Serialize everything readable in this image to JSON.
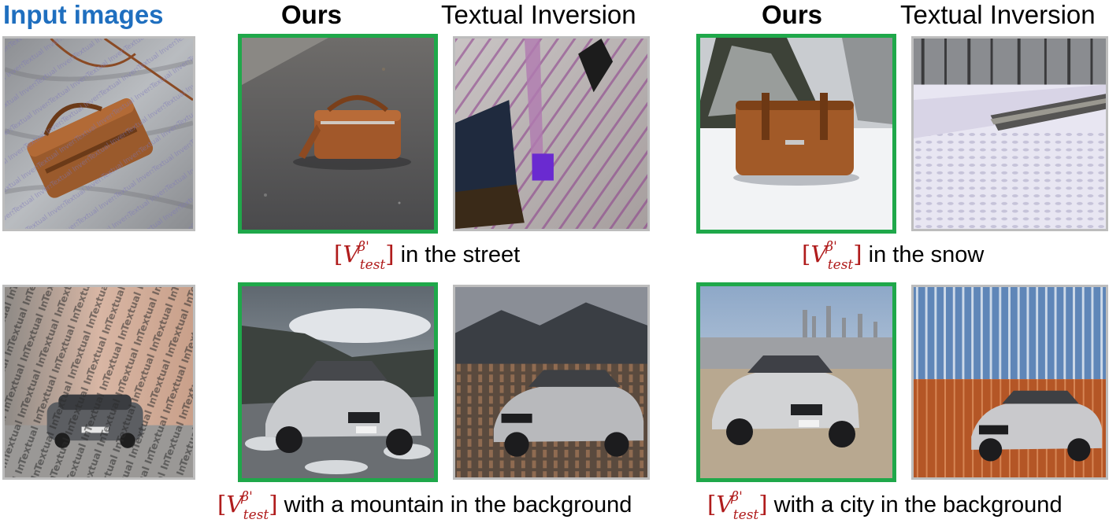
{
  "headers": {
    "input": "Input images",
    "ours": "Ours",
    "textual_inversion": "Textual Inversion"
  },
  "token": {
    "open": "[",
    "base": "V",
    "superscript": "β'",
    "subscript": "test",
    "close": "]"
  },
  "captions": {
    "street": "in the street",
    "snow": "in the snow",
    "mountain": "with a mountain in the background",
    "city": "with a city in the background"
  },
  "watermark_text": "Textual Inversion",
  "plate": "M·0123X",
  "colors": {
    "header_blue": "#1f6fbf",
    "token_red": "#b01c1c",
    "ours_frame_green": "#1fa84a",
    "other_frame_gray": "#bdbdbd"
  }
}
